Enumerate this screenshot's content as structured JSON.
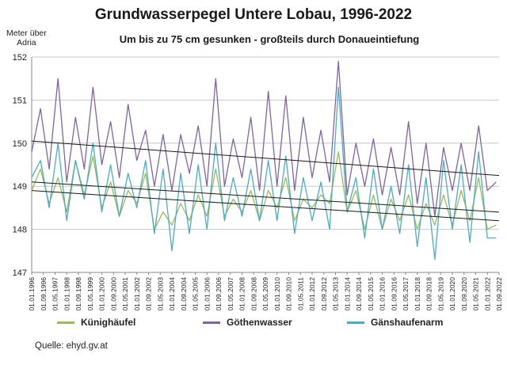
{
  "page": {
    "title": "Grundwasserpegel Untere Lobau, 1996-2022",
    "subtitle": "Um bis zu 75 cm gesunken - großteils durch Donaueintiefung",
    "unit_label_line1": "Meter über",
    "unit_label_line2": "Adria",
    "source": "Quelle: ehyd.gv.at"
  },
  "chart_data": {
    "type": "line",
    "title": "Grundwasserpegel Untere Lobau, 1996-2022",
    "subtitle": "Um bis zu 75 cm gesunken - großteils durch Donaueintiefung",
    "ylabel": "Meter über Adria",
    "ylim": [
      147,
      152
    ],
    "yticks": [
      147,
      148,
      149,
      150,
      151,
      152
    ],
    "grid": "horizontal",
    "legend": "bottom",
    "xlim": [
      "1996-01-01",
      "2022-09-01"
    ],
    "xtick_labels": [
      "01.01.1996",
      "01.09.1996",
      "01.05.1997",
      "01.01.1998",
      "01.09.1998",
      "01.05.1999",
      "01.01.2000",
      "01.09.2000",
      "01.05.2001",
      "01.01.2002",
      "01.09.2002",
      "01.05.2003",
      "01.01.2004",
      "01.09.2004",
      "01.05.2005",
      "01.01.2006",
      "01.09.2006",
      "01.05.2007",
      "01.01.2008",
      "01.09.2008",
      "01.05.2009",
      "01.01.2010",
      "01.09.2010",
      "01.05.2011",
      "01.01.2012",
      "01.09.2012",
      "01.05.2013",
      "01.01.2014",
      "01.09.2014",
      "01.05.2015",
      "01.01.2016",
      "01.09.2016",
      "01.05.2017",
      "01.01.2018",
      "01.09.2018",
      "01.05.2019",
      "01.01.2020",
      "01.09.2020",
      "01.05.2021",
      "01.01.2022",
      "01.09.2022"
    ],
    "series": [
      {
        "name": "Künighäufel",
        "color": "#9bbb59",
        "x": [
          "1996-01",
          "1996-07",
          "1997-01",
          "1997-07",
          "1998-01",
          "1998-07",
          "1999-01",
          "1999-07",
          "2000-01",
          "2000-07",
          "2001-01",
          "2001-07",
          "2002-01",
          "2002-07",
          "2003-01",
          "2003-07",
          "2004-01",
          "2004-07",
          "2005-01",
          "2005-07",
          "2006-01",
          "2006-07",
          "2007-01",
          "2007-07",
          "2008-01",
          "2008-07",
          "2009-01",
          "2009-07",
          "2010-01",
          "2010-07",
          "2011-01",
          "2011-07",
          "2012-01",
          "2012-07",
          "2013-01",
          "2013-07",
          "2014-01",
          "2014-07",
          "2015-01",
          "2015-07",
          "2016-01",
          "2016-07",
          "2017-01",
          "2017-07",
          "2018-01",
          "2018-07",
          "2019-01",
          "2019-07",
          "2020-01",
          "2020-07",
          "2021-01",
          "2021-07",
          "2022-01",
          "2022-07"
        ],
        "values": [
          148.9,
          149.4,
          148.6,
          149.2,
          148.4,
          149.6,
          148.8,
          149.7,
          148.5,
          149.1,
          148.3,
          148.9,
          148.6,
          149.3,
          148.0,
          148.4,
          148.1,
          148.6,
          148.2,
          148.8,
          148.3,
          149.4,
          148.3,
          148.7,
          148.4,
          148.9,
          148.2,
          148.9,
          148.5,
          149.2,
          148.2,
          148.7,
          148.5,
          148.8,
          148.6,
          149.8,
          148.4,
          148.9,
          148.0,
          148.8,
          148.0,
          148.7,
          148.2,
          148.8,
          148.0,
          148.6,
          148.1,
          148.8,
          148.1,
          148.9,
          148.2,
          149.2,
          148.0,
          148.1
        ]
      },
      {
        "name": "Göthenwasser",
        "color": "#8064a2",
        "x": [
          "1996-01",
          "1996-07",
          "1997-01",
          "1997-07",
          "1998-01",
          "1998-07",
          "1999-01",
          "1999-07",
          "2000-01",
          "2000-07",
          "2001-01",
          "2001-07",
          "2002-01",
          "2002-07",
          "2003-01",
          "2003-07",
          "2004-01",
          "2004-07",
          "2005-01",
          "2005-07",
          "2006-01",
          "2006-07",
          "2007-01",
          "2007-07",
          "2008-01",
          "2008-07",
          "2009-01",
          "2009-07",
          "2010-01",
          "2010-07",
          "2011-01",
          "2011-07",
          "2012-01",
          "2012-07",
          "2013-01",
          "2013-07",
          "2014-01",
          "2014-07",
          "2015-01",
          "2015-07",
          "2016-01",
          "2016-07",
          "2017-01",
          "2017-07",
          "2018-01",
          "2018-07",
          "2019-01",
          "2019-07",
          "2020-01",
          "2020-07",
          "2021-01",
          "2021-07",
          "2022-01",
          "2022-07"
        ],
        "values": [
          149.8,
          150.8,
          149.4,
          151.5,
          149.1,
          150.6,
          149.4,
          151.3,
          149.5,
          150.5,
          149.2,
          150.9,
          149.6,
          150.3,
          149.0,
          150.2,
          148.9,
          150.2,
          149.3,
          150.4,
          149.0,
          151.5,
          149.0,
          150.1,
          149.2,
          150.6,
          148.9,
          151.2,
          149.0,
          151.1,
          148.9,
          150.6,
          149.2,
          150.3,
          149.1,
          151.9,
          148.8,
          150.0,
          149.0,
          150.1,
          148.8,
          149.9,
          148.8,
          150.5,
          148.6,
          150.0,
          148.3,
          149.9,
          148.9,
          150.0,
          148.9,
          150.4,
          148.9,
          149.1
        ]
      },
      {
        "name": "Gänshaufenarm",
        "color": "#4bacc6",
        "x": [
          "1996-01",
          "1996-07",
          "1997-01",
          "1997-07",
          "1998-01",
          "1998-07",
          "1999-01",
          "1999-07",
          "2000-01",
          "2000-07",
          "2001-01",
          "2001-07",
          "2002-01",
          "2002-07",
          "2003-01",
          "2003-07",
          "2004-01",
          "2004-07",
          "2005-01",
          "2005-07",
          "2006-01",
          "2006-07",
          "2007-01",
          "2007-07",
          "2008-01",
          "2008-07",
          "2009-01",
          "2009-07",
          "2010-01",
          "2010-07",
          "2011-01",
          "2011-07",
          "2012-01",
          "2012-07",
          "2013-01",
          "2013-07",
          "2014-01",
          "2014-07",
          "2015-01",
          "2015-07",
          "2016-01",
          "2016-07",
          "2017-01",
          "2017-07",
          "2018-01",
          "2018-07",
          "2019-01",
          "2019-07",
          "2020-01",
          "2020-07",
          "2021-01",
          "2021-07",
          "2022-01",
          "2022-07"
        ],
        "values": [
          149.2,
          149.6,
          148.5,
          150.0,
          148.2,
          149.6,
          148.7,
          150.0,
          148.4,
          149.5,
          148.3,
          149.3,
          148.5,
          149.6,
          147.9,
          149.4,
          147.5,
          149.3,
          147.9,
          149.5,
          148.0,
          150.0,
          148.2,
          149.2,
          148.3,
          149.4,
          148.2,
          149.6,
          148.2,
          149.7,
          147.9,
          149.2,
          148.2,
          149.1,
          148.0,
          151.3,
          148.4,
          149.2,
          147.8,
          149.4,
          148.0,
          149.0,
          147.9,
          149.5,
          147.6,
          149.2,
          147.3,
          149.6,
          148.0,
          149.5,
          147.7,
          149.8,
          147.8,
          147.8
        ]
      }
    ],
    "trendlines": [
      {
        "series": "Göthenwasser",
        "start": [
          "1996-01-01",
          150.05
        ],
        "end": [
          "2022-09-01",
          149.25
        ]
      },
      {
        "series": "Künighäufel",
        "start": [
          "1996-01-01",
          149.1
        ],
        "end": [
          "2022-09-01",
          148.4
        ]
      },
      {
        "series": "Gänshaufenarm",
        "start": [
          "1996-01-01",
          148.9
        ],
        "end": [
          "2022-09-01",
          148.2
        ]
      }
    ]
  },
  "legend": {
    "items": [
      {
        "label": "Künighäufel",
        "color": "#9bbb59"
      },
      {
        "label": "Göthenwasser",
        "color": "#8064a2"
      },
      {
        "label": "Gänshaufenarm",
        "color": "#4bacc6"
      }
    ]
  }
}
